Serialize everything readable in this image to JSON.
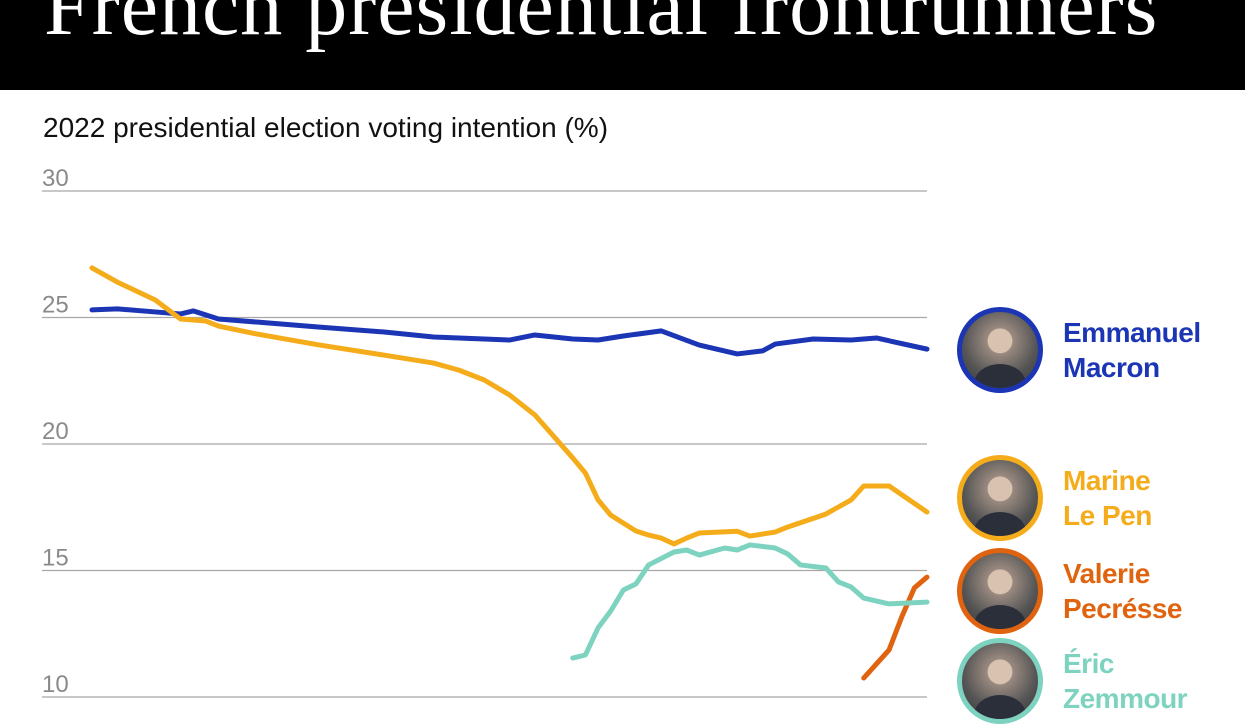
{
  "header": {
    "title": "French presidential frontrunners"
  },
  "chart_data": {
    "type": "line",
    "title": "French presidential frontrunners",
    "subtitle": "2022 presidential election voting intention (%)",
    "ylabel": "",
    "xlabel": "",
    "ylim": [
      10,
      30
    ],
    "yticks": [
      "10",
      "15",
      "20",
      "25",
      "30"
    ],
    "grid": true,
    "legend": "right",
    "series": [
      {
        "name": "Emmanuel Macron",
        "color": "#1b35b5",
        "points": [
          [
            0,
            25.3
          ],
          [
            2,
            25.34
          ],
          [
            5,
            25.22
          ],
          [
            7,
            25.14
          ],
          [
            8,
            25.26
          ],
          [
            10,
            24.94
          ],
          [
            13,
            24.82
          ],
          [
            18,
            24.62
          ],
          [
            23,
            24.43
          ],
          [
            27,
            24.23
          ],
          [
            31,
            24.15
          ],
          [
            33,
            24.11
          ],
          [
            35,
            24.31
          ],
          [
            38,
            24.15
          ],
          [
            40,
            24.11
          ],
          [
            42,
            24.27
          ],
          [
            45,
            24.47
          ],
          [
            48,
            23.91
          ],
          [
            51,
            23.56
          ],
          [
            53,
            23.68
          ],
          [
            54,
            23.95
          ],
          [
            57,
            24.15
          ],
          [
            60,
            24.11
          ],
          [
            62,
            24.19
          ],
          [
            66,
            23.75
          ]
        ]
      },
      {
        "name": "Marine Le Pen",
        "color": "#f5ac1b",
        "points": [
          [
            0,
            26.96
          ],
          [
            2,
            26.4
          ],
          [
            5,
            25.69
          ],
          [
            7,
            24.94
          ],
          [
            9,
            24.86
          ],
          [
            10,
            24.66
          ],
          [
            13,
            24.35
          ],
          [
            18,
            23.91
          ],
          [
            23,
            23.52
          ],
          [
            27,
            23.2
          ],
          [
            29,
            22.92
          ],
          [
            31,
            22.53
          ],
          [
            33,
            21.94
          ],
          [
            35,
            21.15
          ],
          [
            38,
            19.45
          ],
          [
            39,
            18.85
          ],
          [
            40,
            17.79
          ],
          [
            41,
            17.19
          ],
          [
            43,
            16.56
          ],
          [
            44,
            16.4
          ],
          [
            45,
            16.28
          ],
          [
            46,
            16.05
          ],
          [
            47,
            16.28
          ],
          [
            48,
            16.48
          ],
          [
            51,
            16.55
          ],
          [
            52,
            16.36
          ],
          [
            54,
            16.52
          ],
          [
            55,
            16.72
          ],
          [
            58,
            17.23
          ],
          [
            59,
            17.51
          ],
          [
            60,
            17.79
          ],
          [
            61,
            18.34
          ],
          [
            63,
            18.34
          ],
          [
            66,
            17.31
          ]
        ]
      },
      {
        "name": "Valerie Pecrésse",
        "color": "#e0640f",
        "points": [
          [
            61,
            10.75
          ],
          [
            63,
            11.86
          ],
          [
            64,
            13.16
          ],
          [
            65,
            14.31
          ],
          [
            66,
            14.74
          ]
        ]
      },
      {
        "name": "Éric Zemmour",
        "color": "#7dd3bf",
        "points": [
          [
            38,
            11.54
          ],
          [
            39,
            11.66
          ],
          [
            40,
            12.73
          ],
          [
            41,
            13.4
          ],
          [
            42,
            14.23
          ],
          [
            43,
            14.47
          ],
          [
            44,
            15.22
          ],
          [
            46,
            15.73
          ],
          [
            47,
            15.81
          ],
          [
            48,
            15.61
          ],
          [
            50,
            15.89
          ],
          [
            51,
            15.81
          ],
          [
            52,
            16.01
          ],
          [
            54,
            15.89
          ],
          [
            55,
            15.65
          ],
          [
            56,
            15.22
          ],
          [
            58,
            15.1
          ],
          [
            59,
            14.55
          ],
          [
            60,
            14.35
          ],
          [
            61,
            13.91
          ],
          [
            63,
            13.68
          ],
          [
            66,
            13.75
          ]
        ]
      }
    ]
  },
  "legend": [
    {
      "line1": "Emmanuel",
      "line2": "Macron",
      "color": "#1b35b5",
      "icon": "portrait-photo"
    },
    {
      "line1": "Marine",
      "line2": "Le Pen",
      "color": "#f5ac1b",
      "icon": "portrait-photo"
    },
    {
      "line1": "Valerie",
      "line2": "Pecrésse",
      "color": "#e0640f",
      "icon": "portrait-photo"
    },
    {
      "line1": "Éric",
      "line2": "Zemmour",
      "color": "#7dd3bf",
      "icon": "portrait-photo"
    }
  ]
}
